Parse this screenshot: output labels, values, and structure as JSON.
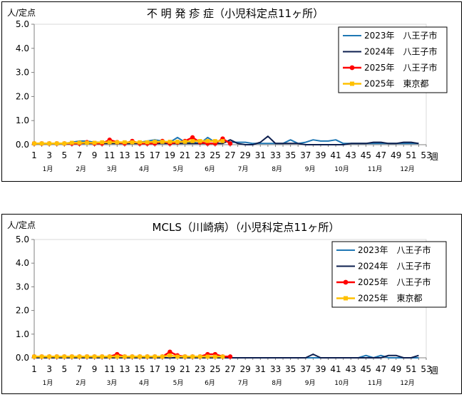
{
  "chart_data": [
    {
      "type": "line",
      "title": "不 明 発 疹 症（小児科定点11ヶ所）",
      "ylabel": "人/定点",
      "xlabel": "週",
      "ylim": [
        0,
        5
      ],
      "y_ticks": [
        "0.0",
        "1.0",
        "2.0",
        "3.0",
        "4.0",
        "5.0"
      ],
      "x_ticks": [
        "1",
        "3",
        "5",
        "7",
        "9",
        "11",
        "13",
        "15",
        "17",
        "19",
        "21",
        "23",
        "25",
        "27",
        "29",
        "31",
        "33",
        "35",
        "37",
        "39",
        "41",
        "43",
        "45",
        "47",
        "49",
        "51",
        "53"
      ],
      "months": [
        "1月",
        "2月",
        "3月",
        "4月",
        "5月",
        "6月",
        "7月",
        "8月",
        "9月",
        "10月",
        "11月",
        "12月"
      ],
      "legend_position": "top-right",
      "series": [
        {
          "name": "2023年　八王子市",
          "color": "#1f77b4",
          "marker": "none",
          "values": [
            0.05,
            0.05,
            0.05,
            0.05,
            0.05,
            0.1,
            0.15,
            0.15,
            0.1,
            0.1,
            0.15,
            0.1,
            0.05,
            0.05,
            0.1,
            0.15,
            0.2,
            0.15,
            0.1,
            0.3,
            0.1,
            0.1,
            0.05,
            0.3,
            0.1,
            0.2,
            0.1,
            0.1,
            0.1,
            0.05,
            0.05,
            0.05,
            0.05,
            0.05,
            0.2,
            0.05,
            0.1,
            0.2,
            0.15,
            0.15,
            0.2,
            0.05,
            0.05,
            0.05,
            0.05,
            0.05,
            0.05,
            0.05,
            0.05,
            0.05,
            0.05,
            0.05
          ]
        },
        {
          "name": "2024年　八王子市",
          "color": "#0d1f4f",
          "marker": "none",
          "values": [
            0.05,
            0.05,
            0.05,
            0.05,
            0.05,
            0.05,
            0.05,
            0.05,
            0.05,
            0.05,
            0.05,
            0.05,
            0.05,
            0.05,
            0.05,
            0.05,
            0.05,
            0.05,
            0.05,
            0.05,
            0.05,
            0.05,
            0.05,
            0.05,
            0.05,
            0.05,
            0.2,
            0.05,
            0.0,
            0.0,
            0.1,
            0.35,
            0.05,
            0.05,
            0.05,
            0.05,
            0.0,
            0.0,
            0.0,
            0.0,
            0.0,
            0.0,
            0.05,
            0.05,
            0.05,
            0.1,
            0.1,
            0.05,
            0.05,
            0.1,
            0.1,
            0.05
          ]
        },
        {
          "name": "2025年　八王子市",
          "color": "#ff0000",
          "marker": "circle",
          "values": [
            0.05,
            0.05,
            0.05,
            0.05,
            0.05,
            0.05,
            0.05,
            0.1,
            0.05,
            0.05,
            0.2,
            0.1,
            0.05,
            0.15,
            0.05,
            0.05,
            0.05,
            0.15,
            0.05,
            0.1,
            0.15,
            0.3,
            0.1,
            0.05,
            0.05,
            0.25,
            0.05
          ]
        },
        {
          "name": "2025年　東京都",
          "color": "#ffc000",
          "marker": "square",
          "values": [
            0.05,
            0.05,
            0.05,
            0.05,
            0.05,
            0.08,
            0.08,
            0.08,
            0.08,
            0.1,
            0.1,
            0.1,
            0.1,
            0.1,
            0.1,
            0.1,
            0.12,
            0.12,
            0.12,
            0.12,
            0.12,
            0.15,
            0.15,
            0.15,
            0.15,
            0.15
          ]
        }
      ]
    },
    {
      "type": "line",
      "title": "MCLS（川崎病）（小児科定点11ヶ所）",
      "ylabel": "人/定点",
      "xlabel": "週",
      "ylim": [
        0,
        5
      ],
      "y_ticks": [
        "0.0",
        "1.0",
        "2.0",
        "3.0",
        "4.0",
        "5.0"
      ],
      "x_ticks": [
        "1",
        "3",
        "5",
        "7",
        "9",
        "11",
        "13",
        "15",
        "17",
        "19",
        "21",
        "23",
        "25",
        "27",
        "29",
        "31",
        "33",
        "35",
        "37",
        "39",
        "41",
        "43",
        "45",
        "47",
        "49",
        "51",
        "53"
      ],
      "months": [
        "1月",
        "2月",
        "3月",
        "4月",
        "5月",
        "6月",
        "7月",
        "8月",
        "9月",
        "10月",
        "11月",
        "12月"
      ],
      "legend_position": "top-right",
      "series": [
        {
          "name": "2023年　八王子市",
          "color": "#1f77b4",
          "marker": "none",
          "values": [
            0.0,
            0.0,
            0.0,
            0.0,
            0.0,
            0.0,
            0.0,
            0.0,
            0.0,
            0.0,
            0.0,
            0.05,
            0.0,
            0.0,
            0.0,
            0.0,
            0.0,
            0.0,
            0.0,
            0.0,
            0.0,
            0.0,
            0.0,
            0.0,
            0.0,
            0.0,
            0.0,
            0.0,
            0.0,
            0.0,
            0.0,
            0.0,
            0.0,
            0.0,
            0.0,
            0.0,
            0.0,
            0.0,
            0.0,
            0.0,
            0.0,
            0.0,
            0.0,
            0.0,
            0.1,
            0.0,
            0.1,
            0.0,
            0.0,
            0.0,
            0.0,
            0.0
          ]
        },
        {
          "name": "2024年　八王子市",
          "color": "#0d1f4f",
          "marker": "none",
          "values": [
            0.0,
            0.0,
            0.0,
            0.0,
            0.0,
            0.0,
            0.0,
            0.0,
            0.0,
            0.0,
            0.0,
            0.0,
            0.0,
            0.0,
            0.0,
            0.0,
            0.0,
            0.0,
            0.0,
            0.0,
            0.0,
            0.0,
            0.0,
            0.0,
            0.0,
            0.0,
            0.0,
            0.0,
            0.0,
            0.0,
            0.0,
            0.0,
            0.0,
            0.0,
            0.0,
            0.0,
            0.0,
            0.15,
            0.0,
            0.0,
            0.0,
            0.0,
            0.0,
            0.0,
            0.0,
            0.0,
            0.0,
            0.1,
            0.1,
            0.0,
            0.0,
            0.1
          ]
        },
        {
          "name": "2025年　八王子市",
          "color": "#ff0000",
          "marker": "circle",
          "values": [
            0.05,
            0.05,
            0.05,
            0.05,
            0.05,
            0.05,
            0.05,
            0.05,
            0.05,
            0.05,
            0.05,
            0.15,
            0.05,
            0.05,
            0.05,
            0.05,
            0.05,
            0.05,
            0.25,
            0.1,
            0.05,
            0.05,
            0.05,
            0.15,
            0.15,
            0.05,
            0.05
          ]
        },
        {
          "name": "2025年　東京都",
          "color": "#ffc000",
          "marker": "square",
          "values": [
            0.05,
            0.05,
            0.05,
            0.05,
            0.05,
            0.05,
            0.05,
            0.05,
            0.05,
            0.05,
            0.05,
            0.05,
            0.05,
            0.05,
            0.05,
            0.05,
            0.05,
            0.05,
            0.1,
            0.05,
            0.05,
            0.05,
            0.05,
            0.05,
            0.05,
            0.05
          ]
        }
      ]
    }
  ]
}
